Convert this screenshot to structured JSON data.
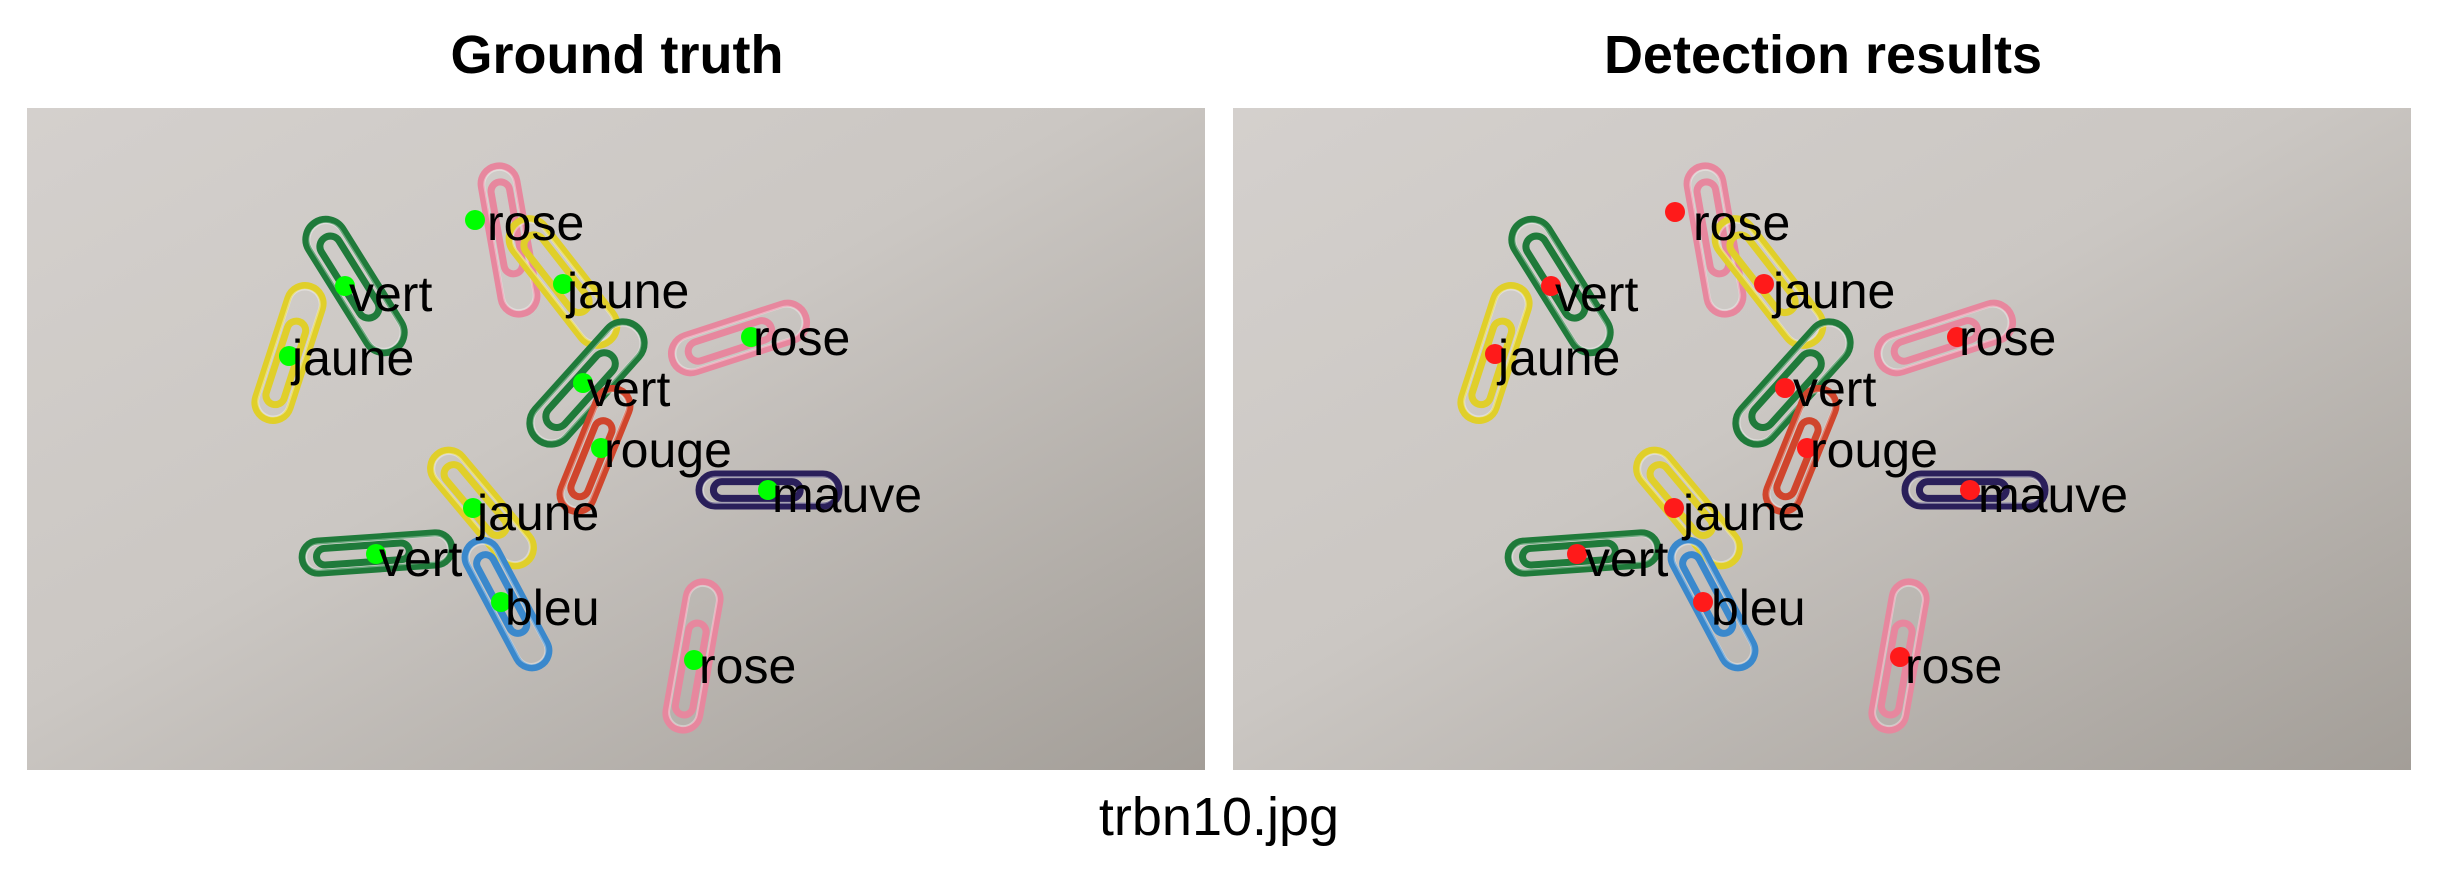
{
  "figure": {
    "panels": [
      {
        "title": "Ground truth",
        "marker_color": "#00ff00"
      },
      {
        "title": "Detection results",
        "marker_color": "#ff1a1a"
      }
    ],
    "caption": "trbn10.jpg"
  },
  "colors": {
    "paper_light": "#d4d0cd",
    "paper_dark": "#a39e98",
    "clip_rose": "#e7879e",
    "clip_jaune": "#e0cf2a",
    "clip_vert": "#1f7a3a",
    "clip_rouge": "#d0452c",
    "clip_mauve": "#2a1f5a",
    "clip_bleu": "#3a88cc"
  },
  "annotations": {
    "ground_truth": [
      {
        "label": "rose",
        "clip": "rose"
      },
      {
        "label": "vert",
        "clip": "vert"
      },
      {
        "label": "jaune",
        "clip": "jaune"
      },
      {
        "label": "jaune",
        "clip": "jaune"
      },
      {
        "label": "rose",
        "clip": "rose"
      },
      {
        "label": "vert",
        "clip": "vert"
      },
      {
        "label": "rouge",
        "clip": "rouge"
      },
      {
        "label": "mauve",
        "clip": "mauve"
      },
      {
        "label": "jaune",
        "clip": "jaune"
      },
      {
        "label": "vert",
        "clip": "vert"
      },
      {
        "label": "bleu",
        "clip": "bleu"
      },
      {
        "label": "rose",
        "clip": "rose"
      }
    ],
    "detection": [
      {
        "label": "rose",
        "clip": "rose"
      },
      {
        "label": "vert",
        "clip": "vert"
      },
      {
        "label": "jaune",
        "clip": "jaune"
      },
      {
        "label": "jaune",
        "clip": "jaune"
      },
      {
        "label": "rose",
        "clip": "rose"
      },
      {
        "label": "vert",
        "clip": "vert"
      },
      {
        "label": "rouge",
        "clip": "rouge"
      },
      {
        "label": "mauve",
        "clip": "mauve"
      },
      {
        "label": "jaune",
        "clip": "jaune"
      },
      {
        "label": "vert",
        "clip": "vert"
      },
      {
        "label": "bleu",
        "clip": "bleu"
      },
      {
        "label": "rose",
        "clip": "rose"
      }
    ]
  }
}
